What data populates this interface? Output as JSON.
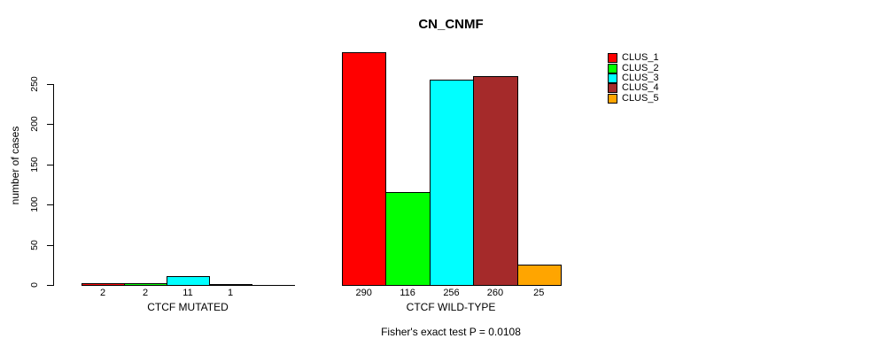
{
  "chart_data": {
    "type": "bar",
    "title": "CN_CNMF",
    "ylabel": "number of cases",
    "annotation": "Fisher's exact test P = 0.0108",
    "yticks": [
      0,
      50,
      100,
      150,
      200,
      250
    ],
    "ylim": [
      0,
      290
    ],
    "grid": false,
    "legend_position": "right",
    "series": [
      {
        "name": "CLUS_1",
        "color": "#FF0000"
      },
      {
        "name": "CLUS_2",
        "color": "#00FF00"
      },
      {
        "name": "CLUS_3",
        "color": "#00FFFF"
      },
      {
        "name": "CLUS_4",
        "color": "#A52A2A"
      },
      {
        "name": "CLUS_5",
        "color": "#FFA500"
      }
    ],
    "groups": [
      {
        "label": "CTCF MUTATED",
        "values": [
          2,
          2,
          11,
          1,
          0
        ],
        "bar_labels": [
          "2",
          "2",
          "11",
          "1",
          ""
        ]
      },
      {
        "label": "CTCF WILD-TYPE",
        "values": [
          290,
          116,
          256,
          260,
          25
        ],
        "bar_labels": [
          "290",
          "116",
          "256",
          "260",
          "25"
        ]
      }
    ]
  }
}
